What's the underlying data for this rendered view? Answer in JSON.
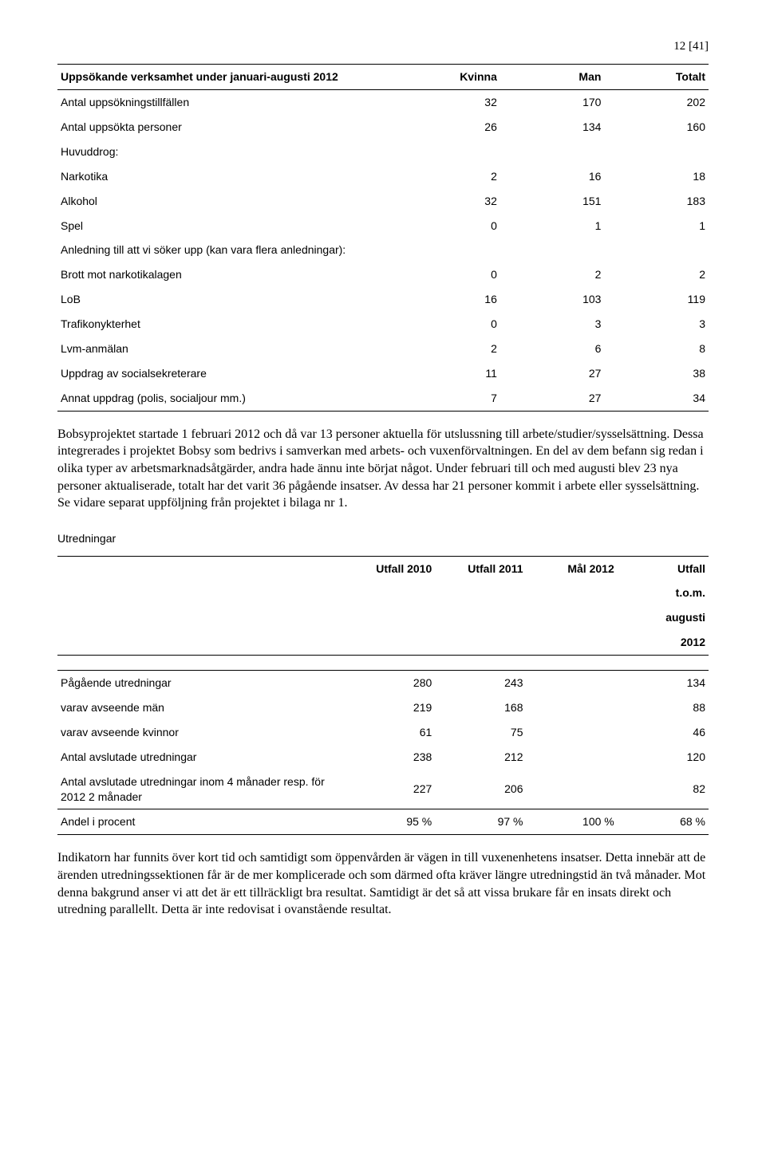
{
  "page_number": "12 [41]",
  "table1": {
    "title": "Uppsökande verksamhet under januari-augusti 2012",
    "headers": [
      "Kvinna",
      "Man",
      "Totalt"
    ],
    "rows": [
      {
        "label": "Antal uppsökningstillfällen",
        "vals": [
          "32",
          "170",
          "202"
        ]
      },
      {
        "label": "Antal uppsökta personer",
        "vals": [
          "26",
          "134",
          "160"
        ]
      },
      {
        "label": "Huvuddrog:",
        "vals": [
          "",
          "",
          ""
        ]
      },
      {
        "label": "Narkotika",
        "vals": [
          "2",
          "16",
          "18"
        ]
      },
      {
        "label": "Alkohol",
        "vals": [
          "32",
          "151",
          "183"
        ]
      },
      {
        "label": "Spel",
        "vals": [
          "0",
          "1",
          "1"
        ]
      },
      {
        "label": "Anledning till att vi söker upp (kan vara flera anledningar):",
        "vals": [
          "",
          "",
          ""
        ]
      },
      {
        "label": "Brott mot narkotikalagen",
        "vals": [
          "0",
          "2",
          "2"
        ]
      },
      {
        "label": "LoB",
        "vals": [
          "16",
          "103",
          "119"
        ]
      },
      {
        "label": "Trafikonykterhet",
        "vals": [
          "0",
          "3",
          "3"
        ]
      },
      {
        "label": "Lvm-anmälan",
        "vals": [
          "2",
          "6",
          "8"
        ]
      },
      {
        "label": "Uppdrag av socialsekreterare",
        "vals": [
          "11",
          "27",
          "38"
        ]
      },
      {
        "label": "Annat uppdrag (polis, socialjour mm.)",
        "vals": [
          "7",
          "27",
          "34"
        ]
      }
    ]
  },
  "paragraph1": "Bobsyprojektet startade 1 februari 2012 och då var 13 personer aktuella för utslussning till arbete/studier/sysselsättning. Dessa integrerades i projektet Bobsy som bedrivs i samverkan med arbets- och vuxenförvaltningen. En del av dem befann sig redan i olika typer av arbetsmarknadsåtgärder, andra hade ännu inte börjat något. Under februari till och med augusti blev 23  nya personer aktualiserade, totalt har det varit 36 pågående insatser. Av dessa har 21 personer kommit i arbete eller sysselsättning. Se vidare separat uppföljning från projektet i bilaga nr 1.",
  "section2_title": "Utredningar",
  "table2": {
    "headers": [
      "Utfall 2010",
      "Utfall 2011",
      "Mål 2012",
      "Utfall t.o.m. augusti 2012"
    ],
    "header_lines": {
      "c4_l1": "Utfall",
      "c4_l2": "t.o.m.",
      "c4_l3": "augusti",
      "c4_l4": "2012"
    },
    "rows": [
      {
        "label": "Pågående utredningar",
        "vals": [
          "280",
          "243",
          "",
          "134"
        ]
      },
      {
        "label": "varav avseende män",
        "vals": [
          "219",
          "168",
          "",
          "88"
        ]
      },
      {
        "label": "varav avseende kvinnor",
        "vals": [
          "61",
          "75",
          "",
          "46"
        ]
      },
      {
        "label": "Antal avslutade utredningar",
        "vals": [
          "238",
          "212",
          "",
          "120"
        ]
      },
      {
        "label": "Antal avslutade utredningar inom 4 månader resp. för 2012 2 månader",
        "vals": [
          "227",
          "206",
          "",
          "82"
        ]
      },
      {
        "label": "Andel i procent",
        "vals": [
          "95 %",
          "97 %",
          "100 %",
          "68 %"
        ]
      }
    ]
  },
  "paragraph2": "Indikatorn har funnits över kort tid och samtidigt som öppenvården är vägen in till vuxenenhetens insatser. Detta innebär att de ärenden utredningssektionen får är de mer komplicerade och som därmed ofta kräver längre utredningstid än två månader. Mot denna bakgrund anser vi att det är ett tillräckligt bra resultat. Samtidigt är det så att vissa brukare får en insats direkt och utredning parallellt. Detta är inte redovisat i ovanstående resultat."
}
